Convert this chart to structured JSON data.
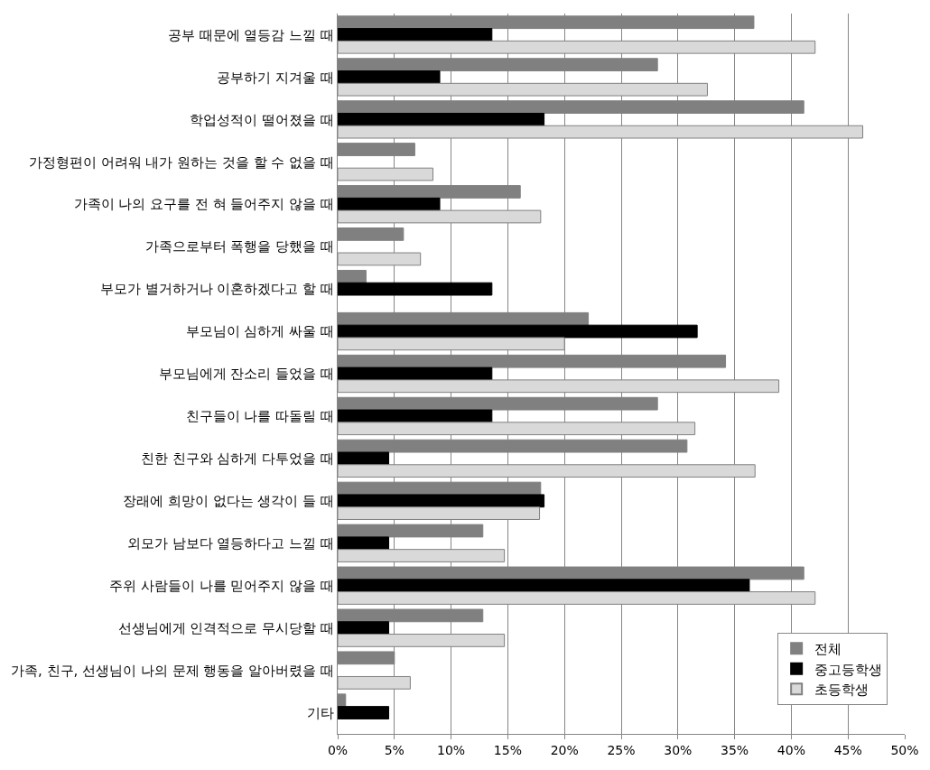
{
  "chart_data": {
    "type": "bar",
    "orientation": "horizontal",
    "categories": [
      "공부 때문에 열등감 느낄 때",
      "공부하기 지겨울 때",
      "학업성적이 떨어졌을 때",
      "가정형편이 어려워 내가 원하는 것을 할 수 없을 때",
      "가족이 나의 요구를 전 혀 들어주지 않을 때",
      "가족으로부터 폭행을 당했을 때",
      "부모가 별거하거나 이혼하겠다고 할 때",
      "부모님이 심하게 싸울 때",
      "부모님에게 잔소리 들었을 때",
      "친구들이 나를 따돌릴 때",
      "친한 친구와 심하게 다투었을 때",
      "장래에 희망이 없다는 생각이 들 때",
      "외모가 남보다 열등하다고 느낄 때",
      "주위 사람들이 나를 믿어주지 않을 때",
      "선생님에게 인격적으로 무시당할 때",
      "가족, 친구, 선생님이 나의 문제 행동을 알아버렸을 때",
      "기타"
    ],
    "series": [
      {
        "name": "전체",
        "color": "#808080",
        "values": [
          36.7,
          28.2,
          41.1,
          6.8,
          16.1,
          5.8,
          2.5,
          22.1,
          34.2,
          28.2,
          30.8,
          17.9,
          12.8,
          41.1,
          12.8,
          5.0,
          0.7
        ]
      },
      {
        "name": "중고등학생",
        "color": "#000000",
        "values": [
          13.6,
          9.0,
          18.2,
          null,
          9.0,
          null,
          13.6,
          31.7,
          13.6,
          13.6,
          4.5,
          18.2,
          4.5,
          36.3,
          4.5,
          null,
          4.5
        ]
      },
      {
        "name": "초등학생",
        "color": "#d9d9d9",
        "values": [
          42.1,
          32.6,
          46.3,
          8.4,
          17.9,
          7.3,
          null,
          20.0,
          38.9,
          31.5,
          36.8,
          17.8,
          14.7,
          42.1,
          14.7,
          6.4,
          null
        ]
      }
    ],
    "xlim": [
      0,
      50
    ],
    "xticks": [
      {
        "value": 0,
        "label": "0%"
      },
      {
        "value": 5,
        "label": "5%"
      },
      {
        "value": 10,
        "label": "10%"
      },
      {
        "value": 15,
        "label": "15%"
      },
      {
        "value": 20,
        "label": "20%"
      },
      {
        "value": 25,
        "label": "25%"
      },
      {
        "value": 30,
        "label": "30%"
      },
      {
        "value": 35,
        "label": "35%"
      },
      {
        "value": 40,
        "label": "40%"
      },
      {
        "value": 45,
        "label": "45%"
      },
      {
        "value": 50,
        "label": "50%"
      }
    ],
    "grid": "x",
    "legend": "bottom right"
  }
}
